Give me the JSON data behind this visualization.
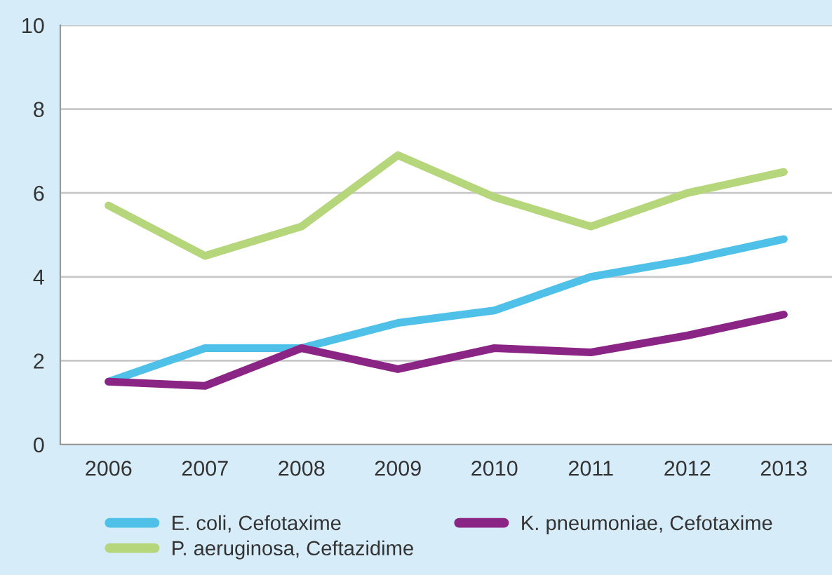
{
  "chart_data": {
    "type": "line",
    "categories": [
      "2006",
      "2007",
      "2008",
      "2009",
      "2010",
      "2011",
      "2012",
      "2013"
    ],
    "series": [
      {
        "name": "E. coli, Cefotaxime",
        "color": "#4fc1e9",
        "values": [
          1.5,
          2.3,
          2.3,
          2.9,
          3.2,
          4.0,
          4.4,
          4.9
        ]
      },
      {
        "name": "K. pneumoniae, Cefotaxime",
        "color": "#8b2585",
        "values": [
          1.5,
          1.4,
          2.3,
          1.8,
          2.3,
          2.2,
          2.6,
          3.1
        ]
      },
      {
        "name": "P. aeruginosa, Ceftazidime",
        "color": "#b5d67a",
        "values": [
          5.7,
          4.5,
          5.2,
          6.9,
          5.9,
          5.2,
          6.0,
          6.5
        ]
      }
    ],
    "ylim": [
      0,
      10
    ],
    "yticks": [
      0,
      2,
      4,
      6,
      8,
      10
    ],
    "grid": "y",
    "legend": "bottom",
    "marker": "none",
    "line_style": "solid"
  }
}
